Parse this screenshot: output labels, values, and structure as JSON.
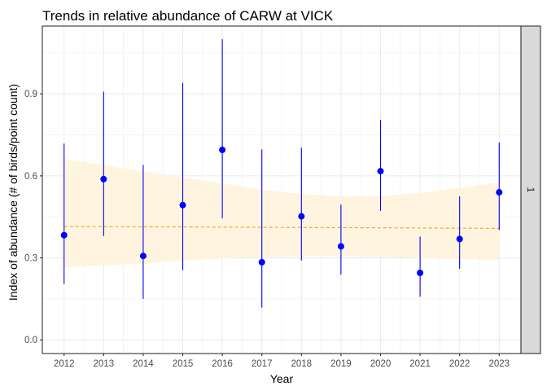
{
  "chart_data": {
    "type": "scatter",
    "title": "Trends in relative abundance of CARW at VICK",
    "xlabel": "Year",
    "ylabel": "Index of abundance (# of birds/point count)",
    "facet_label": "1",
    "x": [
      2012,
      2013,
      2014,
      2015,
      2016,
      2017,
      2018,
      2019,
      2020,
      2021,
      2022,
      2023
    ],
    "series": [
      {
        "values": [
          0.383,
          0.588,
          0.307,
          0.493,
          0.695,
          0.284,
          0.452,
          0.342,
          0.617,
          0.245,
          0.369,
          0.54
        ],
        "lower": [
          0.205,
          0.38,
          0.15,
          0.255,
          0.445,
          0.118,
          0.29,
          0.238,
          0.472,
          0.158,
          0.26,
          0.402
        ],
        "upper": [
          0.718,
          0.908,
          0.64,
          0.94,
          1.1,
          0.697,
          0.703,
          0.495,
          0.805,
          0.378,
          0.525,
          0.722
        ],
        "color": "#0000ff"
      }
    ],
    "trend": {
      "type": "dashed-line",
      "color": "#e6a817",
      "x": [
        2012,
        2023
      ],
      "y": [
        0.415,
        0.408
      ]
    },
    "ribbon": {
      "color": "#fff3dc",
      "x": [
        2012,
        2013,
        2014,
        2015,
        2016,
        2017,
        2018,
        2019,
        2020,
        2021,
        2022,
        2023
      ],
      "lower": [
        0.265,
        0.272,
        0.28,
        0.29,
        0.298,
        0.304,
        0.306,
        0.306,
        0.304,
        0.3,
        0.296,
        0.292
      ],
      "upper": [
        0.662,
        0.64,
        0.616,
        0.594,
        0.572,
        0.55,
        0.534,
        0.524,
        0.526,
        0.538,
        0.556,
        0.576
      ]
    },
    "xlim": [
      2011.45,
      2023.55
    ],
    "ylim": [
      -0.05,
      1.148
    ],
    "yticks": [
      "0.0",
      "0.3",
      "0.6",
      "0.9"
    ],
    "ytick_values": [
      0.0,
      0.3,
      0.6,
      0.9
    ],
    "xticks": [
      "2012",
      "2013",
      "2014",
      "2015",
      "2016",
      "2017",
      "2018",
      "2019",
      "2020",
      "2021",
      "2022",
      "2023"
    ],
    "grid": true,
    "panel_background": "#ffffff",
    "grid_color": "#ebebeb",
    "strip_background": "#d9d9d9"
  }
}
